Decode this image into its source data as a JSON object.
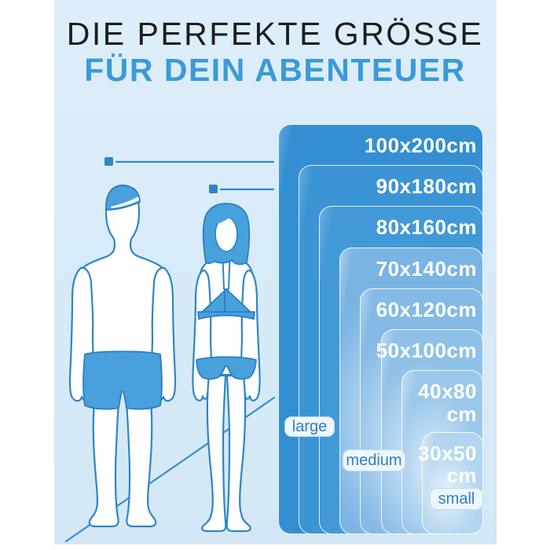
{
  "header": {
    "title_line1": "DIE PERFEKTE GRÖSSE",
    "title_line2": "FÜR DEIN ABENTEUER"
  },
  "chart": {
    "sizes": [
      {
        "line1": "100x200cm",
        "line2": "",
        "w_cm": 100,
        "h_cm": 200,
        "fill": "#338fd1",
        "edge": "#62a9dc",
        "glow": false
      },
      {
        "line1": "90x180cm",
        "line2": "",
        "w_cm": 90,
        "h_cm": 180,
        "fill": "#3b95d4",
        "edge": "#68acde",
        "glow": false
      },
      {
        "line1": "80x160cm",
        "line2": "",
        "w_cm": 80,
        "h_cm": 160,
        "fill": "#4299d7",
        "edge": "#6fb0e0",
        "glow": false
      },
      {
        "line1": "70x140cm",
        "line2": "",
        "w_cm": 70,
        "h_cm": 140,
        "fill": "#7ab4e3",
        "edge": "#a9cfee",
        "glow": true
      },
      {
        "line1": "60x120cm",
        "line2": "",
        "w_cm": 60,
        "h_cm": 120,
        "fill": "#84bae5",
        "edge": "#b1d4ef",
        "glow": true
      },
      {
        "line1": "50x100cm",
        "line2": "",
        "w_cm": 50,
        "h_cm": 100,
        "fill": "#8fc1e8",
        "edge": "#bad9f1",
        "glow": true
      },
      {
        "line1": "40x80",
        "line2": "cm",
        "w_cm": 40,
        "h_cm": 80,
        "fill": "#9cc8eb",
        "edge": "#c5dff4",
        "glow": true
      },
      {
        "line1": "30x50",
        "line2": "cm",
        "w_cm": 30,
        "h_cm": 50,
        "fill": "#b2d5f0",
        "edge": "#d6e9f8",
        "glow": true
      }
    ],
    "badges": [
      {
        "label": "large"
      },
      {
        "label": "medium"
      },
      {
        "label": "small"
      }
    ]
  },
  "icons": {
    "man": "man-silhouette",
    "woman": "woman-silhouette",
    "height_marker": "square-marker"
  },
  "colors": {
    "background_panel": "#d9ebf8",
    "title": "#1d1d1f",
    "accent_blue": "#3b9ad8",
    "outline_blue": "#2e86c5",
    "swimwear_blue": "#48a0dd",
    "size_label_text": "#ffffff",
    "badge_text": "#3080c6",
    "badge_background": "#eef6fd"
  }
}
